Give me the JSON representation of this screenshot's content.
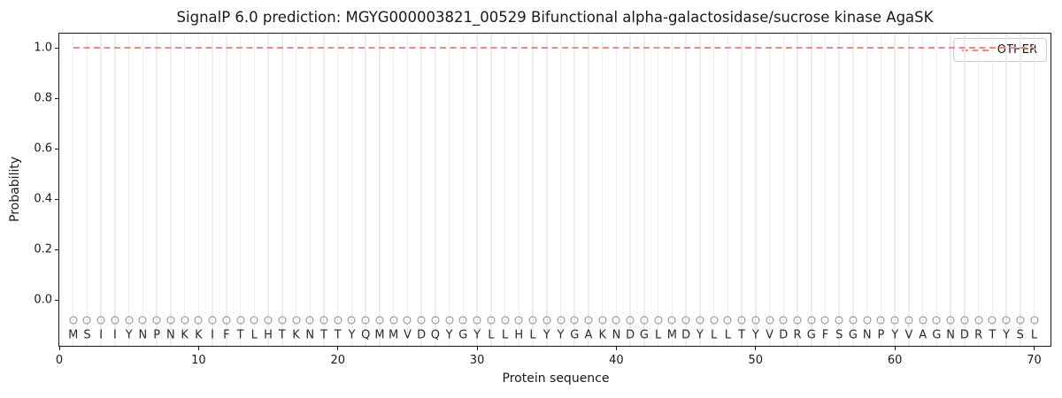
{
  "figure": {
    "title": "SignalP 6.0 prediction: MGYG000003821_00529 Bifunctional alpha-galactosidase/sucrose kinase AgaSK"
  },
  "legend": {
    "position": "upper-right",
    "entries": [
      {
        "label": "OTHER",
        "color": "#ee8a8a",
        "line_style": "dashed"
      }
    ]
  },
  "chart_data": {
    "type": "line",
    "title": "SignalP 6.0 prediction: MGYG000003821_00529 Bifunctional alpha-galactosidase/sucrose kinase AgaSK",
    "xlabel": "Protein sequence",
    "ylabel": "Probability",
    "x_ticks": [
      0,
      10,
      20,
      30,
      40,
      50,
      60,
      70
    ],
    "y_ticks": [
      0.0,
      0.2,
      0.4,
      0.6,
      0.8,
      1.0
    ],
    "xlim": [
      0,
      71.3
    ],
    "ylim": [
      -0.19,
      1.06
    ],
    "grid": "vertical-line-per-residue",
    "legend_position": "upper-right",
    "n_residues": 70,
    "sequence": "MSIIYNPNKKIFTLHTKNTTYQMMVDQYGYLLHLYYGAKNDGLMDYLLTYVDRGFSGNPYVAGNDRTYSL",
    "series": [
      {
        "name": "OTHER",
        "color": "#ee8a8a",
        "line_style": "dashed",
        "x_start": 1,
        "x_end": 70,
        "y_constant": 1.0
      }
    ],
    "markers": {
      "shape": "open-circle",
      "color": "#8a8a8a",
      "y_position": -0.08,
      "one_per_residue": true
    },
    "colors": {
      "gridline": "#ededed",
      "axis": "#1a1a1a",
      "sequence_text": "#2b2b2b",
      "other_line": "#ee8a8a"
    }
  }
}
